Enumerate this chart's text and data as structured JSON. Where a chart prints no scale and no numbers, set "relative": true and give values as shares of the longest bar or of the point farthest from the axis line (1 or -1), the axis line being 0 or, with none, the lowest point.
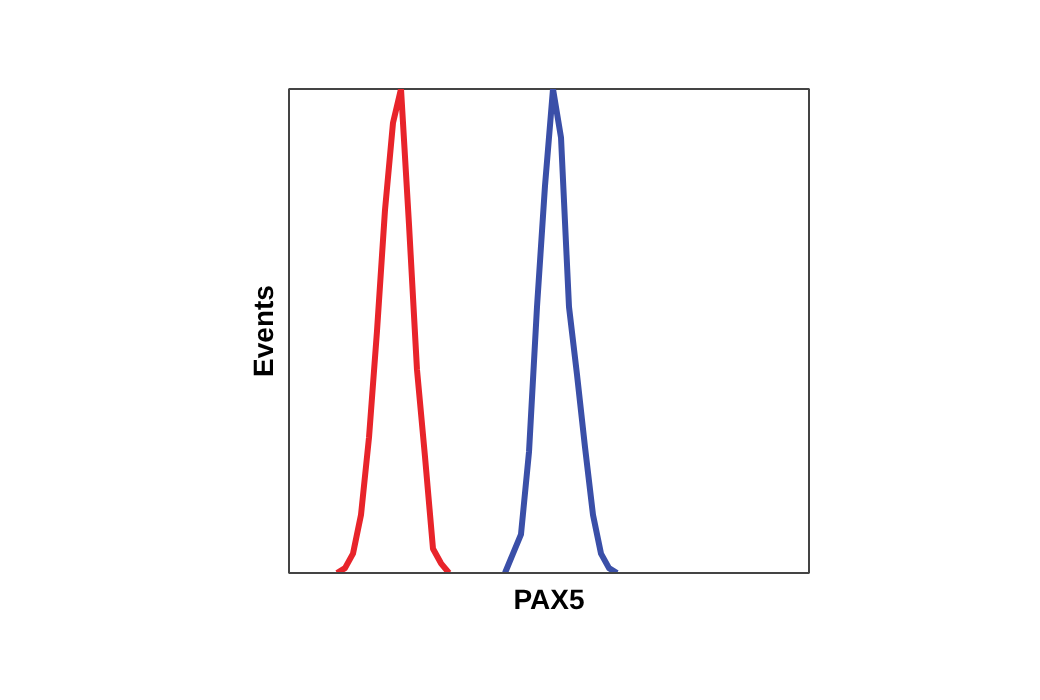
{
  "chart_data": {
    "type": "line",
    "relative": true,
    "xlabel": "PAX5",
    "ylabel": "Events",
    "marker": "none",
    "line_style": "solid",
    "categories": [
      null,
      null,
      null,
      null,
      null,
      null,
      null,
      null,
      null,
      null,
      null,
      null,
      null,
      null,
      null,
      null,
      null,
      null,
      null,
      null,
      null,
      null,
      null,
      null,
      null,
      null,
      null,
      null,
      null,
      null,
      null,
      null,
      null,
      null,
      null,
      null,
      null,
      null,
      null,
      null,
      null,
      null,
      null,
      null,
      null,
      null,
      null,
      null,
      null,
      null,
      null,
      null,
      null,
      null,
      null,
      null,
      null,
      null,
      null,
      null,
      null,
      null,
      null,
      null,
      null,
      null
    ],
    "series": [
      {
        "color": "#e8242a",
        "values": [
          null,
          null,
          null,
          null,
          null,
          null,
          0,
          0.01,
          0.04,
          0.12,
          0.28,
          0.5,
          0.75,
          0.93,
          1.0,
          0.72,
          0.42,
          0.24,
          0.05,
          0.02,
          0,
          null,
          null,
          null,
          null,
          null,
          null,
          null,
          null,
          null,
          null,
          null,
          null,
          null,
          null,
          null,
          null,
          null,
          null,
          null,
          null,
          null,
          null,
          null,
          null,
          null,
          null,
          null,
          null,
          null,
          null,
          null,
          null,
          null,
          null,
          null,
          null,
          null,
          null,
          null,
          null,
          null,
          null,
          null,
          null,
          null
        ]
      },
      {
        "color": "#3a4fa8",
        "values": [
          null,
          null,
          null,
          null,
          null,
          null,
          null,
          null,
          null,
          null,
          null,
          null,
          null,
          null,
          null,
          null,
          null,
          null,
          null,
          null,
          null,
          null,
          null,
          null,
          null,
          null,
          null,
          0,
          0.04,
          0.08,
          0.25,
          0.55,
          0.8,
          1.0,
          0.9,
          0.55,
          0.41,
          0.26,
          0.12,
          0.04,
          0.01,
          0,
          null,
          null,
          null,
          null,
          null,
          null,
          null,
          null,
          null,
          null,
          null,
          null,
          null,
          null,
          null,
          null,
          null,
          null,
          null,
          null,
          null,
          null,
          null,
          null
        ]
      }
    ]
  }
}
